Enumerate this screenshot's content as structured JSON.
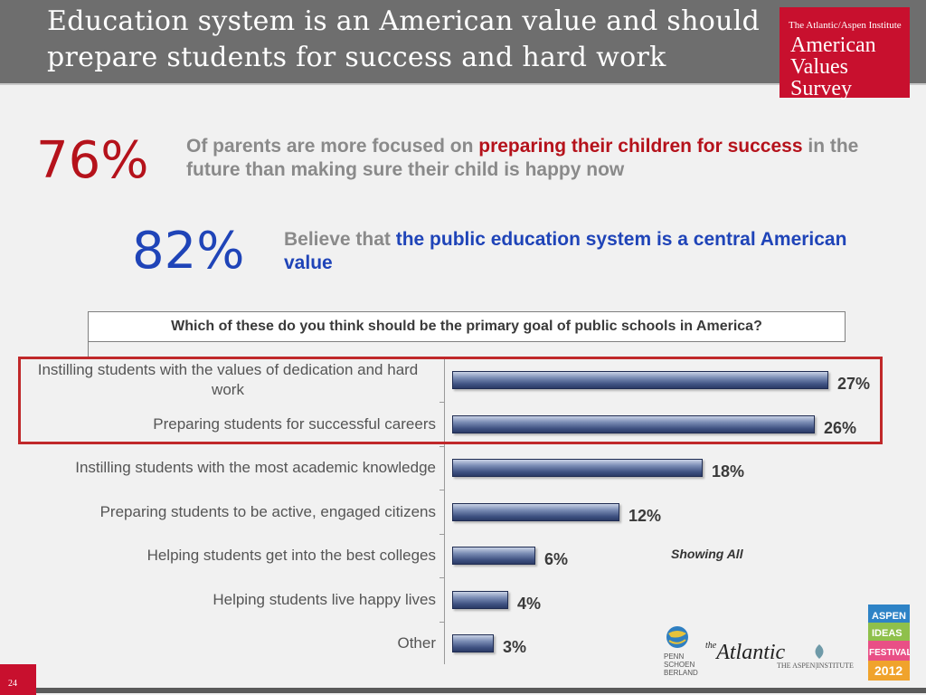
{
  "slide": {
    "title_line1": "Education system is an American value and should",
    "title_line2": "prepare students for success and hard work",
    "page_number": "24"
  },
  "brand": {
    "small": "The Atlantic/Aspen Institute",
    "line1": "American",
    "line2": "Values",
    "line3": "Survey",
    "color": "#c8102e"
  },
  "stats": [
    {
      "value": "76%",
      "text_part1": "Of parents are more  focused on ",
      "text_highlight": "preparing their children for success",
      "text_part2": " in the future than making sure their child is happy now",
      "value_color": "#b5121b"
    },
    {
      "value": "82%",
      "text_part1": "Believe that ",
      "text_highlight": "the public education system is a central American value",
      "value_color": "#1f44b8"
    }
  ],
  "chart_data": {
    "type": "bar",
    "orientation": "horizontal",
    "question": "Which of these do you think should be the primary goal of public schools in America?",
    "categories": [
      "Instilling students with the values of dedication and hard work",
      "Preparing students for successful careers",
      "Instilling students with the most academic knowledge",
      "Preparing students to be active, engaged citizens",
      "Helping students get into the best colleges",
      "Helping students live happy lives",
      "Other"
    ],
    "values": [
      27,
      26,
      18,
      12,
      6,
      4,
      3
    ],
    "value_labels": [
      "27%",
      "26%",
      "18%",
      "12%",
      "6%",
      "4%",
      "3%"
    ],
    "highlighted_categories": [
      0,
      1
    ],
    "note": "Showing All",
    "xlim": [
      0,
      27
    ],
    "bar_color": "#3f5282",
    "highlight_color": "#c0282a"
  },
  "footer": {
    "logos": [
      "PENN SCHOEN BERLAND",
      "the Atlantic",
      "THE ASPEN INSTITUTE",
      "ASPEN IDEAS FESTIVAL 2012"
    ]
  }
}
